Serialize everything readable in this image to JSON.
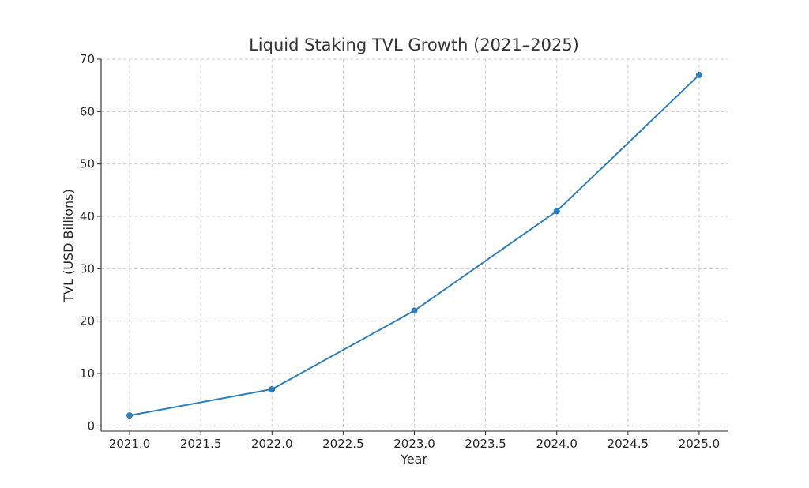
{
  "chart_data": {
    "type": "line",
    "title": "Liquid Staking TVL Growth (2021–2025)",
    "xlabel": "Year",
    "ylabel": "TVL (USD Billions)",
    "x": [
      2021,
      2022,
      2023,
      2024,
      2025
    ],
    "series": [
      {
        "values": [
          2,
          7,
          22,
          41,
          67
        ],
        "color": "#2e7ebc",
        "marker": "circle"
      }
    ],
    "xlim": [
      2020.8,
      2025.2
    ],
    "ylim": [
      -1,
      70
    ],
    "x_ticks": [
      2021.0,
      2021.5,
      2022.0,
      2022.5,
      2023.0,
      2023.5,
      2024.0,
      2024.5,
      2025.0
    ],
    "x_tick_labels": [
      "2021.0",
      "2021.5",
      "2022.0",
      "2022.5",
      "2023.0",
      "2023.5",
      "2024.0",
      "2024.5",
      "2025.0"
    ],
    "y_ticks": [
      0,
      10,
      20,
      30,
      40,
      50,
      60,
      70
    ],
    "y_tick_labels": [
      "0",
      "10",
      "20",
      "30",
      "40",
      "50",
      "60",
      "70"
    ],
    "grid": true,
    "grid_style": "dashed",
    "spines": [
      "left",
      "bottom"
    ]
  }
}
